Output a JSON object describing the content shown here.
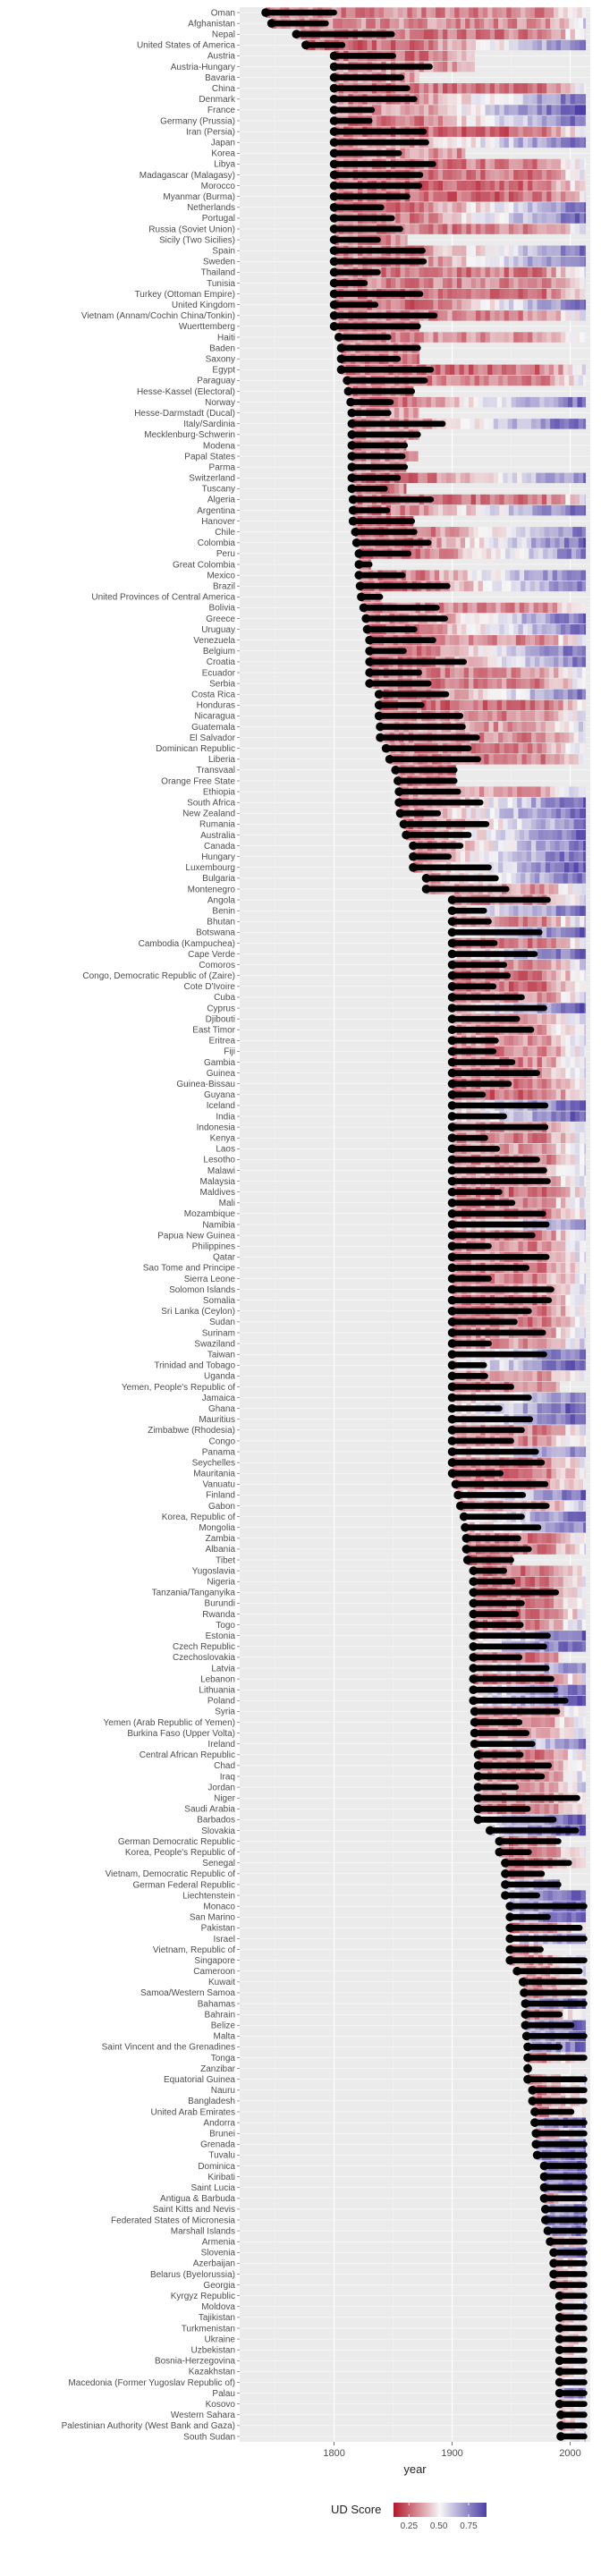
{
  "chart_data": {
    "type": "heatmap",
    "title": "",
    "xlabel": "year",
    "ylabel": "",
    "xlim": [
      1720,
      2017
    ],
    "x_ticks": [
      1800,
      1900,
      2000
    ],
    "grid": true,
    "legend": {
      "title": "UD Score",
      "position": "bottom",
      "ticks": [
        0.25,
        0.5,
        0.75
      ],
      "ticklabels": [
        "0.25",
        "0.50",
        "0.75"
      ],
      "low_color": "#b2182b",
      "mid_color": "#f7f7f7",
      "high_color": "#4d3fa6"
    },
    "countries": [
      "Oman",
      "Afghanistan",
      "Nepal",
      "United States of America",
      "Austria",
      "Austria-Hungary",
      "Bavaria",
      "China",
      "Denmark",
      "France",
      "Germany (Prussia)",
      "Iran (Persia)",
      "Japan",
      "Korea",
      "Libya",
      "Madagascar (Malagasy)",
      "Morocco",
      "Myanmar (Burma)",
      "Netherlands",
      "Portugal",
      "Russia (Soviet Union)",
      "Sicily (Two Sicilies)",
      "Spain",
      "Sweden",
      "Thailand",
      "Tunisia",
      "Turkey (Ottoman Empire)",
      "United Kingdom",
      "Vietnam (Annam/Cochin China/Tonkin)",
      "Wuerttemberg",
      "Haiti",
      "Baden",
      "Saxony",
      "Egypt",
      "Paraguay",
      "Hesse-Kassel (Electoral)",
      "Norway",
      "Hesse-Darmstadt (Ducal)",
      "Italy/Sardinia",
      "Mecklenburg-Schwerin",
      "Modena",
      "Papal States",
      "Parma",
      "Switzerland",
      "Tuscany",
      "Algeria",
      "Argentina",
      "Hanover",
      "Chile",
      "Colombia",
      "Peru",
      "Great Colombia",
      "Mexico",
      "Brazil",
      "United Provinces of Central America",
      "Bolivia",
      "Greece",
      "Uruguay",
      "Venezuela",
      "Belgium",
      "Croatia",
      "Ecuador",
      "Serbia",
      "Costa Rica",
      "Honduras",
      "Nicaragua",
      "Guatemala",
      "El Salvador",
      "Dominican Republic",
      "Liberia",
      "Transvaal",
      "Orange Free State",
      "Ethiopia",
      "South Africa",
      "New Zealand",
      "Rumania",
      "Australia",
      "Canada",
      "Hungary",
      "Luxembourg",
      "Bulgaria",
      "Montenegro",
      "Angola",
      "Benin",
      "Bhutan",
      "Botswana",
      "Cambodia (Kampuchea)",
      "Cape Verde",
      "Comoros",
      "Congo, Democratic Republic of (Zaire)",
      "Cote D'Ivoire",
      "Cuba",
      "Cyprus",
      "Djibouti",
      "East Timor",
      "Eritrea",
      "Fiji",
      "Gambia",
      "Guinea",
      "Guinea-Bissau",
      "Guyana",
      "Iceland",
      "India",
      "Indonesia",
      "Kenya",
      "Laos",
      "Lesotho",
      "Malawi",
      "Malaysia",
      "Maldives",
      "Mali",
      "Mozambique",
      "Namibia",
      "Papua New Guinea",
      "Philippines",
      "Qatar",
      "Sao Tome and Principe",
      "Sierra Leone",
      "Solomon Islands",
      "Somalia",
      "Sri Lanka (Ceylon)",
      "Sudan",
      "Surinam",
      "Swaziland",
      "Taiwan",
      "Trinidad and Tobago",
      "Uganda",
      "Yemen, People's Republic of",
      "Jamaica",
      "Ghana",
      "Mauritius",
      "Zimbabwe (Rhodesia)",
      "Congo",
      "Panama",
      "Seychelles",
      "Mauritania",
      "Vanuatu",
      "Finland",
      "Gabon",
      "Korea, Republic of",
      "Mongolia",
      "Zambia",
      "Albania",
      "Tibet",
      "Yugoslavia",
      "Nigeria",
      "Tanzania/Tanganyika",
      "Burundi",
      "Rwanda",
      "Togo",
      "Estonia",
      "Czech Republic",
      "Czechoslovakia",
      "Latvia",
      "Lebanon",
      "Lithuania",
      "Poland",
      "Syria",
      "Yemen (Arab Republic of Yemen)",
      "Burkina Faso (Upper Volta)",
      "Ireland",
      "Central African Republic",
      "Chad",
      "Iraq",
      "Jordan",
      "Niger",
      "Saudi Arabia",
      "Barbados",
      "Slovakia",
      "German Democratic Republic",
      "Korea, People's Republic of",
      "Senegal",
      "Vietnam, Democratic Republic of",
      "German Federal Republic",
      "Liechtenstein",
      "Monaco",
      "San Marino",
      "Pakistan",
      "Israel",
      "Vietnam, Republic of",
      "Singapore",
      "Cameroon",
      "Kuwait",
      "Samoa/Western Samoa",
      "Bahamas",
      "Bahrain",
      "Belize",
      "Malta",
      "Saint Vincent and the Grenadines",
      "Tonga",
      "Zanzibar",
      "Equatorial Guinea",
      "Nauru",
      "Bangladesh",
      "United Arab Emirates",
      "Andorra",
      "Brunei",
      "Grenada",
      "Tuvalu",
      "Dominica",
      "Kiribati",
      "Saint Lucia",
      "Antigua & Barbuda",
      "Saint Kitts and Nevis",
      "Federated States of Micronesia",
      "Marshall Islands",
      "Armenia",
      "Slovenia",
      "Azerbaijan",
      "Belarus (Byelorussia)",
      "Georgia",
      "Kyrgyz Republic",
      "Moldova",
      "Tajikistan",
      "Turkmenistan",
      "Ukraine",
      "Uzbekistan",
      "Bosnia-Herzegovina",
      "Kazakhstan",
      "Macedonia (Former Yugoslav Republic of)",
      "Palau",
      "Kosovo",
      "Western Sahara",
      "Palestinian Authority (West Bank and Gaza)",
      "South Sudan"
    ],
    "start_years": [
      1742,
      1747,
      1768,
      1776,
      1800,
      1800,
      1800,
      1800,
      1800,
      1800,
      1800,
      1800,
      1800,
      1800,
      1800,
      1800,
      1800,
      1800,
      1800,
      1800,
      1800,
      1800,
      1800,
      1800,
      1800,
      1800,
      1800,
      1800,
      1800,
      1800,
      1804,
      1806,
      1806,
      1806,
      1811,
      1812,
      1814,
      1815,
      1815,
      1815,
      1815,
      1815,
      1815,
      1815,
      1815,
      1816,
      1816,
      1816,
      1818,
      1819,
      1821,
      1821,
      1821,
      1822,
      1823,
      1825,
      1827,
      1828,
      1830,
      1830,
      1830,
      1830,
      1830,
      1838,
      1838,
      1838,
      1839,
      1839,
      1844,
      1847,
      1852,
      1854,
      1855,
      1855,
      1856,
      1859,
      1861,
      1867,
      1867,
      1867,
      1878,
      1878,
      1900,
      1900,
      1900,
      1900,
      1900,
      1900,
      1900,
      1900,
      1900,
      1900,
      1900,
      1900,
      1900,
      1900,
      1900,
      1900,
      1900,
      1900,
      1900,
      1900,
      1900,
      1900,
      1900,
      1900,
      1900,
      1900,
      1900,
      1900,
      1900,
      1900,
      1900,
      1900,
      1900,
      1900,
      1900,
      1900,
      1900,
      1900,
      1900,
      1900,
      1900,
      1900,
      1900,
      1900,
      1900,
      1900,
      1900,
      1900,
      1900,
      1900,
      1900,
      1900,
      1900,
      1900,
      1903,
      1905,
      1907,
      1910,
      1911,
      1912,
      1912,
      1913,
      1918,
      1918,
      1918,
      1918,
      1918,
      1918,
      1918,
      1918,
      1918,
      1918,
      1918,
      1918,
      1918,
      1919,
      1919,
      1919,
      1919,
      1922,
      1922,
      1922,
      1922,
      1922,
      1922,
      1922,
      1932,
      1940,
      1940,
      1945,
      1945,
      1945,
      1945,
      1949,
      1949,
      1949,
      1949,
      1949,
      1949,
      1955,
      1960,
      1961,
      1962,
      1962,
      1962,
      1963,
      1964,
      1964,
      1964,
      1964,
      1968,
      1968,
      1970,
      1970,
      1971,
      1971,
      1972,
      1978,
      1978,
      1978,
      1978,
      1979,
      1979,
      1981,
      1983,
      1986,
      1986,
      1986,
      1986,
      1991,
      1991,
      1991,
      1991,
      1991,
      1991,
      1991,
      1991,
      1991,
      1991,
      1991,
      1992,
      1992,
      1992,
      1994,
      2000,
      2005,
      2008,
      2011
    ],
    "end_years": [
      2012,
      2012,
      2012,
      2012,
      1918,
      1918,
      1871,
      2012,
      2012,
      2012,
      2012,
      2012,
      2012,
      1910,
      2012,
      2012,
      2012,
      2012,
      2012,
      2012,
      2012,
      1861,
      2012,
      2012,
      2012,
      2012,
      2012,
      2012,
      2012,
      1871,
      2012,
      1871,
      1871,
      2012,
      2012,
      1866,
      2012,
      1871,
      2012,
      1871,
      1860,
      1870,
      1860,
      2012,
      1860,
      2012,
      2012,
      1866,
      2012,
      2012,
      2012,
      1830,
      2012,
      2012,
      1839,
      2012,
      2012,
      2012,
      2012,
      2012,
      2012,
      2012,
      2012,
      2012,
      2012,
      2012,
      2012,
      2012,
      2012,
      2012,
      1902,
      1902,
      2012,
      2012,
      2012,
      2012,
      2012,
      2012,
      2012,
      2012,
      2012,
      2012,
      2012,
      2012,
      2012,
      2012,
      2012,
      2012,
      2012,
      2012,
      2012,
      2012,
      2012,
      2012,
      2012,
      2012,
      2012,
      2012,
      2012,
      2012,
      2012,
      2012,
      2012,
      2012,
      2012,
      2012,
      2012,
      2012,
      2012,
      2012,
      2012,
      2012,
      2012,
      2012,
      2012,
      2012,
      2012,
      2012,
      2012,
      2012,
      2012,
      2012,
      2012,
      2012,
      2012,
      2012,
      2012,
      1990,
      2012,
      2012,
      2012,
      2012,
      2012,
      2012,
      2012,
      2012,
      2012,
      2012,
      2012,
      2012,
      2012,
      2012,
      2012,
      1950,
      2012,
      2012,
      2012,
      2012,
      2012,
      2012,
      2012,
      2012,
      1992,
      2012,
      2012,
      2012,
      2012,
      2012,
      2012,
      2012,
      2012,
      2012,
      2012,
      2012,
      2012,
      2012,
      2012,
      2012,
      2012,
      1990,
      2012,
      2012,
      1976,
      1990,
      2012,
      2012,
      2012,
      2012,
      2012,
      1975,
      2012,
      2012,
      2012,
      2012,
      2012,
      2012,
      2012,
      2012,
      2012,
      2012,
      1964,
      2012,
      2012,
      2012,
      2012,
      2012,
      2012,
      2012,
      2012,
      2012,
      2012,
      2012,
      2012,
      2012,
      2012,
      2012,
      2012,
      2012,
      2012,
      2012,
      2012,
      2012,
      2012,
      2012,
      2012,
      2012,
      2012,
      2012,
      2012,
      2012,
      2012,
      2012,
      2012,
      2012,
      2012,
      2012,
      2012,
      2012,
      2012
    ]
  }
}
